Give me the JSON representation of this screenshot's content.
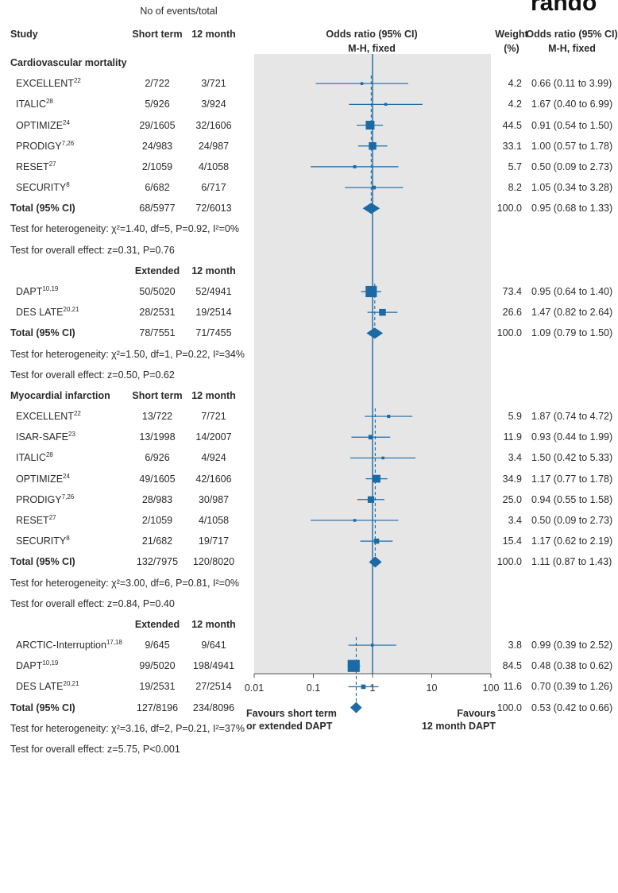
{
  "corner_text": "rando",
  "header": {
    "events_title": "No of events/total",
    "study_label": "Study",
    "arm_a": "Short term",
    "arm_b": "12 month",
    "or_title_1": "Odds ratio (95% CI)",
    "or_title_2": "M-H, fixed",
    "weight_1": "Weight",
    "weight_2": "(%)",
    "or_col_1": "Odds ratio (95% CI)",
    "or_col_2": "M-H, fixed"
  },
  "chart_data": {
    "type": "forest",
    "x_scale": "log",
    "xlim": [
      0.01,
      100
    ],
    "x_ticks": [
      "0.01",
      "0.1",
      "1",
      "10",
      "100"
    ],
    "favours_left": [
      "Favours short term",
      "or extended DAPT"
    ],
    "favours_right": [
      "Favours",
      "12 month DAPT"
    ],
    "rows": [
      {
        "kind": "group",
        "label": "Cardiovascular mortality"
      },
      {
        "kind": "study",
        "label": "EXCELLENT",
        "sup": "22",
        "a": "2/722",
        "b": "3/721",
        "weight": "4.2",
        "ci_text": "0.66 (0.11 to 3.99)",
        "or": 0.66,
        "lo": 0.11,
        "hi": 3.99,
        "w": 4.2
      },
      {
        "kind": "study",
        "label": "ITALIC",
        "sup": "28",
        "a": "5/926",
        "b": "3/924",
        "weight": "4.2",
        "ci_text": "1.67 (0.40 to 6.99)",
        "or": 1.67,
        "lo": 0.4,
        "hi": 6.99,
        "w": 4.2
      },
      {
        "kind": "study",
        "label": "OPTIMIZE",
        "sup": "24",
        "a": "29/1605",
        "b": "32/1606",
        "weight": "44.5",
        "ci_text": "0.91 (0.54 to 1.50)",
        "or": 0.91,
        "lo": 0.54,
        "hi": 1.5,
        "w": 44.5
      },
      {
        "kind": "study",
        "label": "PRODIGY",
        "sup": "7,26",
        "a": "24/983",
        "b": "24/987",
        "weight": "33.1",
        "ci_text": "1.00 (0.57 to 1.78)",
        "or": 1.0,
        "lo": 0.57,
        "hi": 1.78,
        "w": 33.1
      },
      {
        "kind": "study",
        "label": "RESET",
        "sup": "27",
        "a": "2/1059",
        "b": "4/1058",
        "weight": "5.7",
        "ci_text": "0.50 (0.09 to 2.73)",
        "or": 0.5,
        "lo": 0.09,
        "hi": 2.73,
        "w": 5.7
      },
      {
        "kind": "study",
        "label": "SECURITY",
        "sup": "8",
        "a": "6/682",
        "b": "6/717",
        "weight": "8.2",
        "ci_text": "1.05 (0.34 to 3.28)",
        "or": 1.05,
        "lo": 0.34,
        "hi": 3.28,
        "w": 8.2
      },
      {
        "kind": "total",
        "label": "Total (95% CI)",
        "a": "68/5977",
        "b": "72/6013",
        "weight": "100.0",
        "ci_text": "0.95 (0.68 to 1.33)",
        "or": 0.95,
        "lo": 0.68,
        "hi": 1.33
      },
      {
        "kind": "note",
        "label": "Test for heterogeneity: χ²=1.40, df=5, P=0.92, I²=0%"
      },
      {
        "kind": "note",
        "label": "Test for overall effect: z=0.31, P=0.76"
      },
      {
        "kind": "subhead",
        "a": "Extended",
        "b": "12 month"
      },
      {
        "kind": "study",
        "label": "DAPT",
        "sup": "10,19",
        "a": "50/5020",
        "b": "52/4941",
        "weight": "73.4",
        "ci_text": "0.95 (0.64 to 1.40)",
        "or": 0.95,
        "lo": 0.64,
        "hi": 1.4,
        "w": 73.4
      },
      {
        "kind": "study",
        "label": "DES LATE",
        "sup": "20,21",
        "a": "28/2531",
        "b": "19/2514",
        "weight": "26.6",
        "ci_text": "1.47 (0.82 to 2.64)",
        "or": 1.47,
        "lo": 0.82,
        "hi": 2.64,
        "w": 26.6
      },
      {
        "kind": "total",
        "label": "Total (95% CI)",
        "a": "78/7551",
        "b": "71/7455",
        "weight": "100.0",
        "ci_text": "1.09 (0.79 to 1.50)",
        "or": 1.09,
        "lo": 0.79,
        "hi": 1.5
      },
      {
        "kind": "note",
        "label": "Test for heterogeneity: χ²=1.50, df=1, P=0.22, I²=34%"
      },
      {
        "kind": "note",
        "label": "Test for overall effect: z=0.50, P=0.62"
      },
      {
        "kind": "grouphead",
        "label": "Myocardial infarction",
        "a": "Short term",
        "b": "12 month"
      },
      {
        "kind": "study",
        "label": "EXCELLENT",
        "sup": "22",
        "a": "13/722",
        "b": "7/721",
        "weight": "5.9",
        "ci_text": "1.87 (0.74 to 4.72)",
        "or": 1.87,
        "lo": 0.74,
        "hi": 4.72,
        "w": 5.9
      },
      {
        "kind": "study",
        "label": "ISAR-SAFE",
        "sup": "23",
        "a": "13/1998",
        "b": "14/2007",
        "weight": "11.9",
        "ci_text": "0.93 (0.44 to 1.99)",
        "or": 0.93,
        "lo": 0.44,
        "hi": 1.99,
        "w": 11.9
      },
      {
        "kind": "study",
        "label": "ITALIC",
        "sup": "28",
        "a": "6/926",
        "b": "4/924",
        "weight": "3.4",
        "ci_text": "1.50 (0.42 to 5.33)",
        "or": 1.5,
        "lo": 0.42,
        "hi": 5.33,
        "w": 3.4
      },
      {
        "kind": "study",
        "label": "OPTIMIZE",
        "sup": "24",
        "a": "49/1605",
        "b": "42/1606",
        "weight": "34.9",
        "ci_text": "1.17 (0.77 to 1.78)",
        "or": 1.17,
        "lo": 0.77,
        "hi": 1.78,
        "w": 34.9
      },
      {
        "kind": "study",
        "label": "PRODIGY",
        "sup": "7,26",
        "a": "28/983",
        "b": "30/987",
        "weight": "25.0",
        "ci_text": "0.94 (0.55 to 1.58)",
        "or": 0.94,
        "lo": 0.55,
        "hi": 1.58,
        "w": 25.0
      },
      {
        "kind": "study",
        "label": "RESET",
        "sup": "27",
        "a": "2/1059",
        "b": "4/1058",
        "weight": "3.4",
        "ci_text": "0.50 (0.09 to 2.73)",
        "or": 0.5,
        "lo": 0.09,
        "hi": 2.73,
        "w": 3.4
      },
      {
        "kind": "study",
        "label": "SECURITY",
        "sup": "8",
        "a": "21/682",
        "b": "19/717",
        "weight": "15.4",
        "ci_text": "1.17 (0.62 to 2.19)",
        "or": 1.17,
        "lo": 0.62,
        "hi": 2.19,
        "w": 15.4
      },
      {
        "kind": "total",
        "label": "Total (95% CI)",
        "a": "132/7975",
        "b": "120/8020",
        "weight": "100.0",
        "ci_text": "1.11 (0.87 to 1.43)",
        "or": 1.11,
        "lo": 0.87,
        "hi": 1.43
      },
      {
        "kind": "note",
        "label": "Test for heterogeneity: χ²=3.00, df=6, P=0.81, I²=0%"
      },
      {
        "kind": "note",
        "label": "Test for overall effect: z=0.84, P=0.40"
      },
      {
        "kind": "subhead",
        "a": "Extended",
        "b": "12 month"
      },
      {
        "kind": "study",
        "label": "ARCTIC-Interruption",
        "sup": "17,18",
        "a": "9/645",
        "b": "9/641",
        "weight": "3.8",
        "ci_text": "0.99 (0.39 to 2.52)",
        "or": 0.99,
        "lo": 0.39,
        "hi": 2.52,
        "w": 3.8
      },
      {
        "kind": "study",
        "label": "DAPT",
        "sup": "10,19",
        "a": "99/5020",
        "b": "198/4941",
        "weight": "84.5",
        "ci_text": "0.48 (0.38 to 0.62)",
        "or": 0.48,
        "lo": 0.38,
        "hi": 0.62,
        "w": 84.5
      },
      {
        "kind": "study",
        "label": "DES LATE",
        "sup": "20,21",
        "a": "19/2531",
        "b": "27/2514",
        "weight": "11.6",
        "ci_text": "0.70 (0.39 to 1.26)",
        "or": 0.7,
        "lo": 0.39,
        "hi": 1.26,
        "w": 11.6
      },
      {
        "kind": "total",
        "label": "Total (95% CI)",
        "a": "127/8196",
        "b": "234/8096",
        "weight": "100.0",
        "ci_text": "0.53 (0.42 to 0.66)",
        "or": 0.53,
        "lo": 0.42,
        "hi": 0.66
      },
      {
        "kind": "note",
        "label": "Test for heterogeneity: χ²=3.16, df=2, P=0.21, I²=37%"
      },
      {
        "kind": "note",
        "label": "Test for overall effect: z=5.75, P<0.001"
      }
    ]
  },
  "colors": {
    "mark": "#1b6aa5",
    "panel": "#e6e6e6",
    "text": "#2a2a2a"
  }
}
